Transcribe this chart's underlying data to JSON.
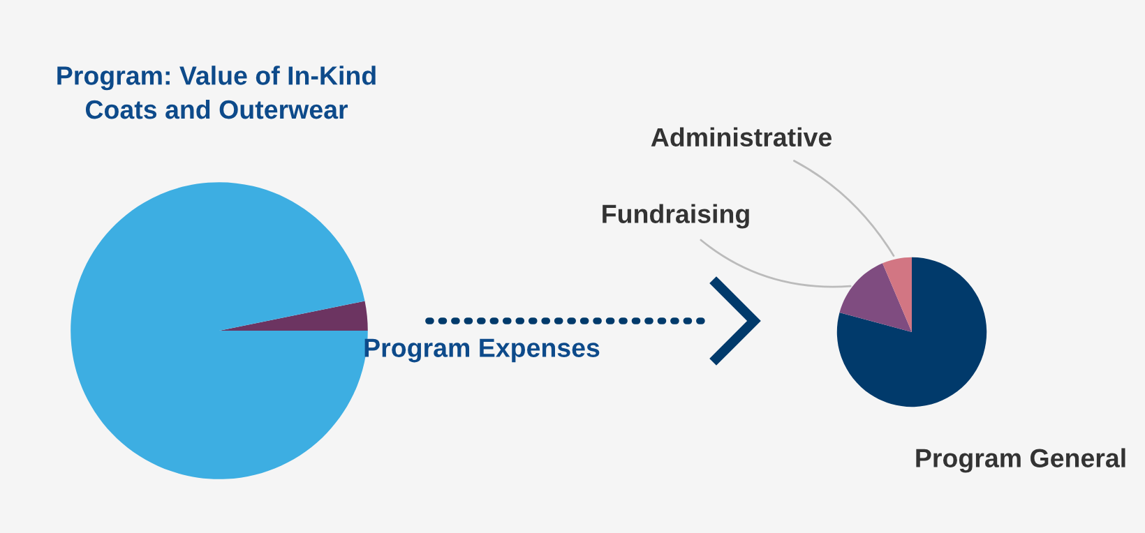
{
  "chart_data": [
    {
      "type": "pie",
      "categories": [
        "Program Expenses",
        "Program: Value of In-Kind\nCoats and Outerwear"
      ],
      "values": [
        3.2,
        96.8
      ],
      "colors": [
        "#6c3461",
        "#3daee2"
      ]
    },
    {
      "type": "pie",
      "categories": [
        "Program General",
        "Fundraising",
        "Administrative"
      ],
      "values": [
        79.2,
        14.4,
        6.4
      ],
      "colors": [
        "#013a6b",
        "#7f4c80",
        "#d27683"
      ]
    }
  ]
}
